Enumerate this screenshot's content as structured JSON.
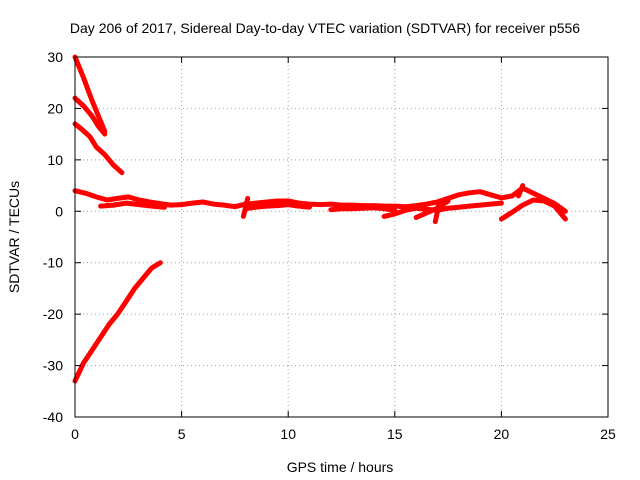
{
  "chart_data": {
    "type": "line",
    "title": "Day 206 of 2017, Sidereal Day-to-day VTEC variation (SDTVAR) for receiver p556",
    "xlabel": "GPS time / hours",
    "ylabel": "SDTVAR / TECUs",
    "xlim": [
      0,
      25
    ],
    "ylim": [
      -40,
      30
    ],
    "xticks": [
      0,
      5,
      10,
      15,
      20,
      25
    ],
    "yticks": [
      30,
      20,
      10,
      0,
      -10,
      -20,
      -30,
      -40
    ],
    "grid": true,
    "legend": "none",
    "colors": {
      "series": "#ff0000",
      "grid": "#a0a0a0",
      "axis": "#000000"
    },
    "series": [
      {
        "x": [
          0.0,
          0.4,
          0.8,
          1.2,
          1.4
        ],
        "y": [
          30,
          26,
          21.5,
          17.5,
          15.5
        ]
      },
      {
        "x": [
          0.0,
          0.4,
          0.8,
          1.1,
          1.4
        ],
        "y": [
          22,
          20.5,
          18.5,
          16.5,
          15
        ]
      },
      {
        "x": [
          0.0,
          0.3,
          0.7,
          1.0,
          1.4,
          1.8,
          2.2
        ],
        "y": [
          17,
          16,
          14.5,
          12.5,
          11,
          9,
          7.5
        ]
      },
      {
        "x": [
          0.0,
          0.4,
          0.8,
          1.2,
          1.6,
          2.0,
          2.4,
          2.8,
          3.2,
          3.6,
          4.0
        ],
        "y": [
          -33,
          -29.5,
          -27,
          -24.5,
          -22,
          -20,
          -17.5,
          -15,
          -13,
          -11,
          -10
        ]
      },
      {
        "x": [
          0.0,
          0.5,
          1.0,
          1.5,
          2.0,
          2.5,
          3.0,
          3.5,
          4.0,
          4.5,
          5.0,
          5.5,
          6.0,
          6.5,
          7.0,
          7.5,
          8.0,
          8.5,
          9.0,
          9.5,
          10.0,
          10.5,
          11.0,
          11.5,
          12.0,
          12.5,
          13.0,
          13.5,
          14.0,
          14.5,
          15.0,
          15.5,
          16.0,
          16.5,
          17.0,
          17.5,
          18.0,
          18.5,
          19.0,
          19.5,
          20.0,
          20.5,
          21.0,
          21.5,
          22.0,
          22.5,
          23.0
        ],
        "y": [
          4,
          3.5,
          2.8,
          2.2,
          2.5,
          2.8,
          2.2,
          1.8,
          1.5,
          1.2,
          1.3,
          1.6,
          1.8,
          1.4,
          1.2,
          0.9,
          1.4,
          1.6,
          1.8,
          2.0,
          2.0,
          1.6,
          1.4,
          1.3,
          1.4,
          1.2,
          1.2,
          1.1,
          1.1,
          1.0,
          1.0,
          0.9,
          1.1,
          1.4,
          1.8,
          2.5,
          3.2,
          3.6,
          3.8,
          3.2,
          2.6,
          3.0,
          4.5,
          3.5,
          2.5,
          1.5,
          0
        ]
      },
      {
        "x": [
          1.2,
          1.8,
          2.4,
          3.0,
          3.6,
          4.2
        ],
        "y": [
          1.0,
          1.2,
          1.6,
          1.3,
          1.0,
          0.8
        ]
      },
      {
        "x": [
          8.0,
          8.5,
          9.0,
          9.5,
          10.0,
          10.5,
          11.0
        ],
        "y": [
          0.5,
          0.8,
          1.0,
          1.1,
          1.3,
          1.0,
          0.8
        ]
      },
      {
        "x": [
          12.0,
          12.5,
          13.0,
          13.5,
          14.0,
          14.5,
          15.0
        ],
        "y": [
          0.3,
          0.5,
          0.5,
          0.6,
          0.7,
          0.5,
          0.2
        ]
      },
      {
        "x": [
          14.5,
          15.0,
          15.5,
          16.0,
          16.5,
          17.0,
          17.5,
          18.0,
          18.5,
          19.0,
          19.5,
          20.0
        ],
        "y": [
          -1.0,
          -0.5,
          0.2,
          0.6,
          0.4,
          0.2,
          0.6,
          0.8,
          1.0,
          1.2,
          1.4,
          1.6
        ]
      },
      {
        "x": [
          20.0,
          20.5,
          21.0,
          21.5,
          22.0,
          22.5,
          23.0
        ],
        "y": [
          -1.5,
          -0.2,
          1.2,
          2.2,
          2.0,
          1.0,
          -1.5
        ]
      },
      {
        "x": [
          16.0,
          16.5,
          17.0,
          17.5
        ],
        "y": [
          -1.2,
          -0.3,
          0.6,
          2.0
        ]
      },
      {
        "x": [
          7.9,
          8.1
        ],
        "y": [
          -1.0,
          2.5
        ]
      },
      {
        "x": [
          16.9,
          17.1
        ],
        "y": [
          -2.0,
          2.0
        ]
      },
      {
        "x": [
          20.8,
          21.0
        ],
        "y": [
          3.0,
          5.0
        ]
      }
    ]
  }
}
